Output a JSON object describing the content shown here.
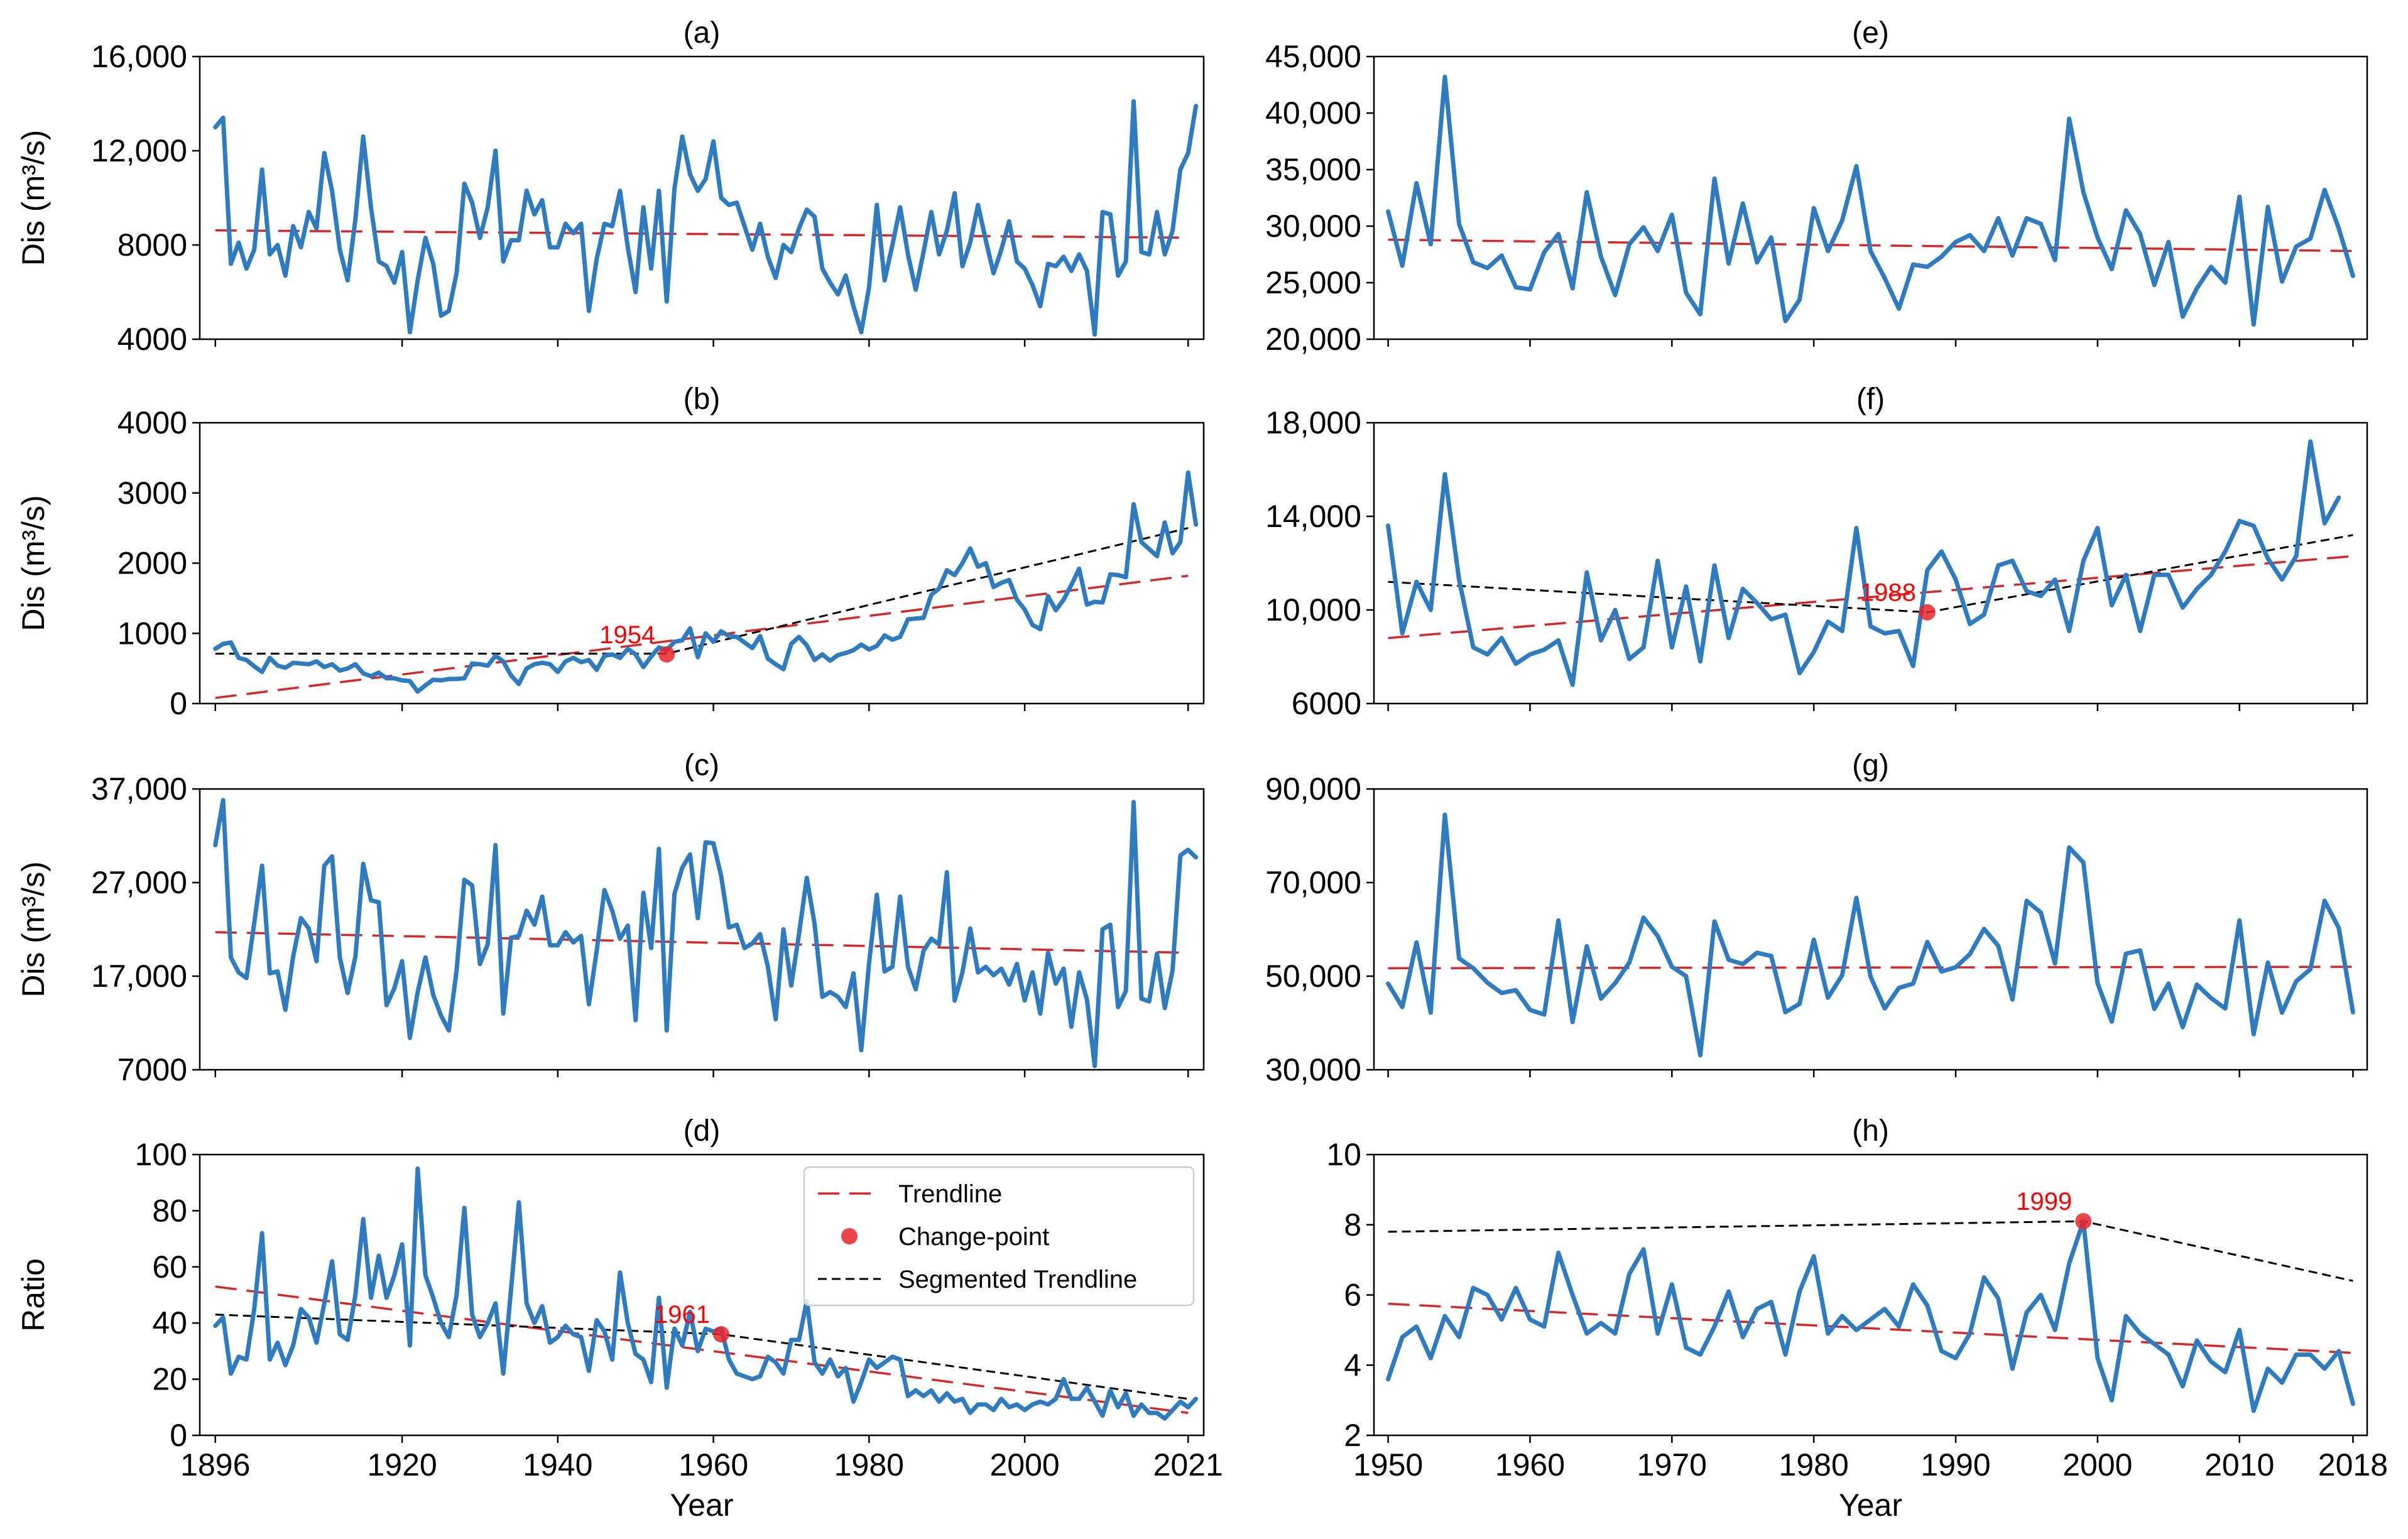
{
  "colors": {
    "series": "#2f7bbf",
    "trend": "#d62728",
    "segmented": "#000000",
    "changepoint": "#e8262a",
    "axis": "#000000"
  },
  "legend": {
    "placement": "upper-right of panel (d)",
    "entries": [
      {
        "key": "trend",
        "label": "Trendline"
      },
      {
        "key": "changepoint",
        "label": "Change-point"
      },
      {
        "key": "segmented",
        "label": "Segmented Trendline"
      }
    ]
  },
  "chart_data": [
    {
      "id": "a",
      "title": "(a)",
      "type": "line",
      "ylabel": "Dis (m³/s)",
      "xlabel": "",
      "xlim": [
        1894,
        2023
      ],
      "ylim": [
        4000,
        16000
      ],
      "yticks": [
        4000,
        8000,
        12000,
        16000
      ],
      "yticklabels": [
        "4000",
        "8000",
        "12,000",
        "16,000"
      ],
      "xticks": [
        1896,
        1920,
        1940,
        1960,
        1980,
        2000,
        2021
      ],
      "xticklabels": [],
      "x_start": 1896,
      "values": [
        13000,
        13400,
        7200,
        8100,
        7000,
        7800,
        11200,
        7600,
        8000,
        6700,
        8800,
        7900,
        9400,
        8700,
        11900,
        10300,
        7800,
        6500,
        9100,
        12600,
        9600,
        7300,
        7100,
        6400,
        7700,
        4300,
        6500,
        8300,
        7200,
        5000,
        5200,
        6800,
        10600,
        9800,
        8300,
        9600,
        12000,
        7300,
        8200,
        8200,
        10300,
        9300,
        9900,
        7900,
        7900,
        8900,
        8500,
        8900,
        5200,
        7400,
        8900,
        8800,
        10300,
        7900,
        6000,
        9600,
        7000,
        10300,
        5600,
        10400,
        12600,
        11000,
        10300,
        10800,
        12400,
        10000,
        9700,
        9800,
        8800,
        7800,
        8900,
        7500,
        6600,
        8000,
        7700,
        8700,
        9500,
        9200,
        7000,
        6400,
        5900,
        6700,
        5400,
        4300,
        6200,
        9700,
        6500,
        8000,
        9600,
        7600,
        6100,
        7700,
        9400,
        7600,
        8600,
        10200,
        7100,
        8100,
        9700,
        8200,
        6800,
        7800,
        9000,
        7300,
        7000,
        6300,
        5400,
        7200,
        7100,
        7500,
        6900,
        7600,
        6900,
        4200,
        9400,
        9300,
        6700,
        7300,
        14100,
        7700,
        7600,
        9400,
        7600,
        8600,
        11200,
        11900,
        13900
      ],
      "trend": [
        [
          1896,
          8620
        ],
        [
          2021,
          8310
        ]
      ]
    },
    {
      "id": "b",
      "title": "(b)",
      "type": "line",
      "ylabel": "Dis (m³/s)",
      "xlabel": "",
      "xlim": [
        1894,
        2023
      ],
      "ylim": [
        0,
        4000
      ],
      "yticks": [
        0,
        1000,
        2000,
        3000,
        4000
      ],
      "yticklabels": [
        "0",
        "1000",
        "2000",
        "3000",
        "4000"
      ],
      "xticks": [
        1896,
        1920,
        1940,
        1960,
        1980,
        2000,
        2021
      ],
      "xticklabels": [],
      "x_start": 1896,
      "values": [
        780,
        850,
        870,
        650,
        620,
        530,
        450,
        650,
        540,
        510,
        580,
        570,
        560,
        600,
        520,
        560,
        470,
        500,
        560,
        430,
        390,
        440,
        360,
        360,
        330,
        320,
        170,
        260,
        340,
        330,
        350,
        350,
        360,
        570,
        560,
        540,
        680,
        600,
        400,
        280,
        500,
        560,
        580,
        560,
        450,
        600,
        650,
        590,
        620,
        480,
        680,
        700,
        650,
        780,
        700,
        520,
        670,
        800,
        760,
        880,
        900,
        1070,
        660,
        1000,
        880,
        1030,
        960,
        950,
        870,
        790,
        960,
        640,
        560,
        490,
        850,
        950,
        830,
        620,
        700,
        610,
        690,
        720,
        760,
        840,
        770,
        820,
        970,
        910,
        950,
        1200,
        1210,
        1220,
        1550,
        1640,
        1900,
        1830,
        2000,
        2210,
        1950,
        2000,
        1660,
        1720,
        1760,
        1480,
        1340,
        1120,
        1060,
        1530,
        1330,
        1480,
        1690,
        1920,
        1410,
        1450,
        1440,
        1840,
        1830,
        1800,
        2840,
        2300,
        2200,
        2100,
        2580,
        2140,
        2300,
        3290,
        2550
      ],
      "trend": [
        [
          1896,
          80
        ],
        [
          2021,
          1820
        ]
      ],
      "segmented": [
        [
          1896,
          710
        ],
        [
          1954,
          710
        ],
        [
          2021,
          2500
        ]
      ],
      "changepoint": {
        "x": 1954,
        "y": 700,
        "label": "1954"
      }
    },
    {
      "id": "c",
      "title": "(c)",
      "type": "line",
      "ylabel": "Dis (m³/s)",
      "xlabel": "",
      "xlim": [
        1894,
        2023
      ],
      "ylim": [
        7000,
        37000
      ],
      "yticks": [
        7000,
        17000,
        27000,
        37000
      ],
      "yticklabels": [
        "7000",
        "17,000",
        "27,000",
        "37,000"
      ],
      "xticks": [
        1896,
        1920,
        1940,
        1960,
        1980,
        2000,
        2021
      ],
      "xticklabels": [],
      "x_start": 1896,
      "values": [
        31000,
        35800,
        19000,
        17400,
        16800,
        22700,
        28800,
        17300,
        17500,
        13400,
        19100,
        23200,
        22100,
        18600,
        28800,
        29800,
        19000,
        15200,
        19100,
        29000,
        25100,
        24900,
        13900,
        15700,
        18600,
        10400,
        15300,
        19000,
        15000,
        12800,
        11200,
        17600,
        27300,
        26700,
        18300,
        20400,
        31000,
        13000,
        21100,
        21300,
        24000,
        22500,
        25500,
        20300,
        20300,
        21700,
        20600,
        21300,
        14000,
        19700,
        26200,
        24000,
        21000,
        22400,
        12300,
        25900,
        20000,
        30600,
        11200,
        25800,
        28600,
        30000,
        23200,
        31300,
        31200,
        27700,
        22200,
        22500,
        20000,
        20500,
        21500,
        18000,
        12400,
        22000,
        16000,
        21500,
        27500,
        22600,
        14800,
        15300,
        14800,
        13700,
        17300,
        9100,
        18400,
        25700,
        17500,
        18000,
        25500,
        18000,
        15600,
        19700,
        21000,
        20400,
        28100,
        14400,
        17400,
        22100,
        17400,
        18000,
        17100,
        17800,
        16100,
        18300,
        14400,
        17400,
        13000,
        19500,
        16200,
        17800,
        11600,
        17400,
        14500,
        7400,
        22000,
        22500,
        13700,
        15400,
        35600,
        14600,
        14300,
        19400,
        13600,
        17600,
        29900,
        30500,
        29700
      ],
      "trend": [
        [
          1896,
          21700
        ],
        [
          2021,
          19500
        ]
      ]
    },
    {
      "id": "d",
      "title": "(d)",
      "type": "line",
      "ylabel": "Ratio",
      "xlabel": "Year",
      "xlim": [
        1894,
        2023
      ],
      "ylim": [
        0,
        100
      ],
      "yticks": [
        0,
        20,
        40,
        60,
        80,
        100
      ],
      "yticklabels": [
        "0",
        "20",
        "40",
        "60",
        "80",
        "100"
      ],
      "xticks": [
        1896,
        1920,
        1940,
        1960,
        1980,
        2000,
        2021
      ],
      "xticklabels": [
        "1896",
        "1920",
        "1940",
        "1960",
        "1980",
        "2000",
        "2021"
      ],
      "x_start": 1896,
      "values": [
        39,
        42,
        22,
        28,
        27,
        45,
        72,
        27,
        33,
        25,
        32,
        45,
        42,
        33,
        47,
        62,
        36,
        34,
        50,
        77,
        49,
        64,
        49,
        57,
        68,
        32,
        95,
        57,
        49,
        40,
        35,
        50,
        81,
        43,
        35,
        40,
        47,
        22,
        52,
        83,
        47,
        40,
        46,
        33,
        35,
        39,
        36,
        35,
        23,
        41,
        37,
        27,
        58,
        40,
        29,
        27,
        19,
        49,
        17,
        38,
        32,
        44,
        30,
        38,
        37,
        38,
        27,
        22,
        21,
        20,
        21,
        28,
        26,
        22,
        34,
        34,
        48,
        26,
        22,
        27,
        21,
        24,
        12,
        19,
        27,
        24,
        26,
        28,
        27,
        14,
        16,
        14,
        16,
        12,
        15,
        12,
        13,
        8,
        11,
        11,
        9,
        13,
        10,
        11,
        9,
        11,
        12,
        11,
        13,
        20,
        13,
        13,
        17,
        12,
        7,
        16,
        10,
        15,
        7,
        11,
        8,
        8,
        6,
        9,
        12,
        10,
        13
      ],
      "trend": [
        [
          1896,
          53
        ],
        [
          2021,
          8
        ]
      ],
      "segmented": [
        [
          1896,
          43
        ],
        [
          1961,
          36
        ],
        [
          2021,
          13
        ]
      ],
      "changepoint": {
        "x": 1961,
        "y": 36,
        "label": "1961"
      },
      "has_legend": true
    },
    {
      "id": "e",
      "title": "(e)",
      "type": "line",
      "ylabel": "",
      "xlabel": "",
      "xlim": [
        1949,
        2019
      ],
      "ylim": [
        20000,
        45000
      ],
      "yticks": [
        20000,
        25000,
        30000,
        35000,
        40000,
        45000
      ],
      "yticklabels": [
        "20,000",
        "25,000",
        "30,000",
        "35,000",
        "40,000",
        "45,000"
      ],
      "xticks": [
        1950,
        1960,
        1970,
        1980,
        1990,
        2000,
        2010,
        2018
      ],
      "xticklabels": [],
      "x_start": 1950,
      "values": [
        31300,
        26500,
        33800,
        28400,
        43200,
        30200,
        26800,
        26300,
        27400,
        24600,
        24400,
        27700,
        29300,
        24500,
        33000,
        27300,
        23900,
        28400,
        29900,
        27800,
        31000,
        24100,
        22200,
        34200,
        26700,
        32000,
        26800,
        29000,
        21600,
        23500,
        31600,
        27800,
        30500,
        35300,
        27800,
        25400,
        22700,
        26600,
        26400,
        27300,
        28600,
        29200,
        27800,
        30700,
        27400,
        30700,
        30200,
        27000,
        39500,
        33000,
        29000,
        26200,
        31400,
        29300,
        24800,
        28600,
        22000,
        24500,
        26400,
        25000,
        32600,
        21300,
        31700,
        25100,
        28200,
        28900,
        33200,
        29800,
        25600
      ],
      "trend": [
        [
          1950,
          28800
        ],
        [
          2018,
          27800
        ]
      ]
    },
    {
      "id": "f",
      "title": "(f)",
      "type": "line",
      "ylabel": "",
      "xlabel": "",
      "xlim": [
        1949,
        2019
      ],
      "ylim": [
        6000,
        18000
      ],
      "yticks": [
        6000,
        10000,
        14000,
        18000
      ],
      "yticklabels": [
        "6000",
        "10,000",
        "14,000",
        "18,000"
      ],
      "xticks": [
        1950,
        1960,
        1970,
        1980,
        1990,
        2000,
        2010,
        2018
      ],
      "xticklabels": [],
      "x_start": 1950,
      "values": [
        13600,
        9000,
        11200,
        10000,
        15800,
        11300,
        8400,
        8100,
        8800,
        7700,
        8100,
        8300,
        8700,
        6800,
        11600,
        8700,
        10000,
        7900,
        8400,
        12100,
        8400,
        11000,
        7800,
        11900,
        8800,
        10900,
        10300,
        9600,
        9800,
        7300,
        8200,
        9500,
        9100,
        13500,
        9300,
        9000,
        9100,
        7600,
        11700,
        12500,
        11300,
        9400,
        9800,
        11900,
        12100,
        10800,
        10600,
        11300,
        9100,
        12100,
        13500,
        10200,
        11500,
        9100,
        11500,
        11500,
        10100,
        10900,
        11500,
        12500,
        13800,
        13600,
        12200,
        11300,
        12300,
        17200,
        13700,
        14800
      ],
      "trend": [
        [
          1950,
          8800
        ],
        [
          2018,
          12300
        ]
      ],
      "segmented": [
        [
          1950,
          11200
        ],
        [
          1988,
          9900
        ],
        [
          2018,
          13200
        ]
      ],
      "changepoint": {
        "x": 1988,
        "y": 9900,
        "label": "1988"
      }
    },
    {
      "id": "g",
      "title": "(g)",
      "type": "line",
      "ylabel": "",
      "xlabel": "",
      "xlim": [
        1949,
        2019
      ],
      "ylim": [
        30000,
        90000
      ],
      "yticks": [
        30000,
        50000,
        70000,
        90000
      ],
      "yticklabels": [
        "30,000",
        "50,000",
        "70,000",
        "90,000"
      ],
      "xticks": [
        1950,
        1960,
        1970,
        1980,
        1990,
        2000,
        2010,
        2018
      ],
      "xticklabels": [],
      "x_start": 1950,
      "values": [
        48400,
        43400,
        57200,
        42200,
        84500,
        53800,
        51700,
        48600,
        46400,
        47000,
        42800,
        41800,
        61900,
        40200,
        56400,
        45200,
        48500,
        52900,
        62500,
        58600,
        52000,
        50000,
        33100,
        61700,
        53500,
        52600,
        55000,
        54300,
        42300,
        44100,
        57800,
        45400,
        50200,
        66700,
        49900,
        43100,
        47500,
        48400,
        57300,
        51000,
        51900,
        54700,
        60100,
        56500,
        45000,
        66100,
        63600,
        52700,
        77500,
        74300,
        48500,
        40300,
        54800,
        55500,
        43000,
        48400,
        39100,
        48200,
        45300,
        43100,
        61900,
        37600,
        52900,
        42200,
        48900,
        51500,
        66100,
        60300,
        42300
      ],
      "trend": [
        [
          1950,
          51700
        ],
        [
          2018,
          52000
        ]
      ]
    },
    {
      "id": "h",
      "title": "(h)",
      "type": "line",
      "ylabel": "",
      "xlabel": "Year",
      "xlim": [
        1949,
        2019
      ],
      "ylim": [
        2,
        10
      ],
      "yticks": [
        2,
        4,
        6,
        8,
        10
      ],
      "yticklabels": [
        "2",
        "4",
        "6",
        "8",
        "10"
      ],
      "xticks": [
        1950,
        1960,
        1970,
        1980,
        1990,
        2000,
        2010,
        2018
      ],
      "xticklabels": [
        "1950",
        "1960",
        "1970",
        "1980",
        "1990",
        "2000",
        "2010",
        "2018"
      ],
      "x_start": 1950,
      "values": [
        3.6,
        4.8,
        5.1,
        4.2,
        5.4,
        4.8,
        6.2,
        6.0,
        5.3,
        6.2,
        5.3,
        5.1,
        7.2,
        6.0,
        4.9,
        5.2,
        4.9,
        6.6,
        7.3,
        4.9,
        6.3,
        4.5,
        4.3,
        5.1,
        6.1,
        4.8,
        5.6,
        5.8,
        4.3,
        6.1,
        7.1,
        4.9,
        5.4,
        5.0,
        5.3,
        5.6,
        5.1,
        6.3,
        5.7,
        4.4,
        4.2,
        4.9,
        6.5,
        5.9,
        3.9,
        5.5,
        6.0,
        5.0,
        6.9,
        8.1,
        4.2,
        3.0,
        5.4,
        4.9,
        4.6,
        4.3,
        3.4,
        4.7,
        4.1,
        3.8,
        5.0,
        2.7,
        3.9,
        3.5,
        4.3,
        4.3,
        3.9,
        4.4,
        2.9
      ],
      "trend": [
        [
          1950,
          5.75
        ],
        [
          2018,
          4.35
        ]
      ],
      "segmented": [
        [
          1950,
          7.8
        ],
        [
          1999,
          8.1
        ],
        [
          2018,
          6.4
        ]
      ],
      "changepoint": {
        "x": 1999,
        "y": 8.1,
        "label": "1999"
      }
    }
  ]
}
